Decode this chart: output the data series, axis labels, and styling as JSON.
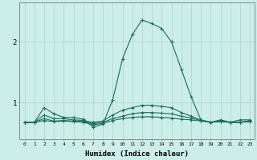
{
  "xlabel": "Humidex (Indice chaleur)",
  "ylabel": "",
  "background_color": "#cceee8",
  "grid_color": "#b8d8d4",
  "line_color": "#1a6b60",
  "x": [
    0,
    1,
    2,
    3,
    4,
    5,
    6,
    7,
    8,
    9,
    10,
    11,
    12,
    13,
    14,
    15,
    16,
    17,
    18,
    19,
    20,
    21,
    22,
    23
  ],
  "series": [
    [
      0.68,
      0.68,
      0.92,
      0.82,
      0.76,
      0.76,
      0.73,
      0.6,
      0.65,
      1.05,
      1.72,
      2.12,
      2.36,
      2.3,
      2.22,
      2.0,
      1.55,
      1.1,
      0.72,
      0.68,
      0.72,
      0.68,
      0.72,
      0.72
    ],
    [
      0.68,
      0.68,
      0.8,
      0.74,
      0.74,
      0.72,
      0.71,
      0.68,
      0.7,
      0.8,
      0.88,
      0.92,
      0.96,
      0.96,
      0.94,
      0.92,
      0.84,
      0.78,
      0.72,
      0.68,
      0.71,
      0.68,
      0.68,
      0.71
    ],
    [
      0.68,
      0.68,
      0.74,
      0.7,
      0.71,
      0.7,
      0.69,
      0.66,
      0.68,
      0.74,
      0.78,
      0.82,
      0.84,
      0.84,
      0.83,
      0.82,
      0.78,
      0.75,
      0.71,
      0.68,
      0.7,
      0.68,
      0.68,
      0.7
    ],
    [
      0.68,
      0.68,
      0.71,
      0.69,
      0.7,
      0.69,
      0.68,
      0.64,
      0.66,
      0.71,
      0.74,
      0.76,
      0.77,
      0.77,
      0.76,
      0.75,
      0.73,
      0.72,
      0.7,
      0.68,
      0.69,
      0.68,
      0.68,
      0.69
    ]
  ],
  "ylim": [
    0.4,
    2.65
  ],
  "xlim": [
    -0.5,
    23.5
  ],
  "yticks": [
    1,
    2
  ],
  "xticks": [
    0,
    1,
    2,
    3,
    4,
    5,
    6,
    7,
    8,
    9,
    10,
    11,
    12,
    13,
    14,
    15,
    16,
    17,
    18,
    19,
    20,
    21,
    22,
    23
  ],
  "figsize": [
    3.2,
    2.0
  ],
  "dpi": 100
}
